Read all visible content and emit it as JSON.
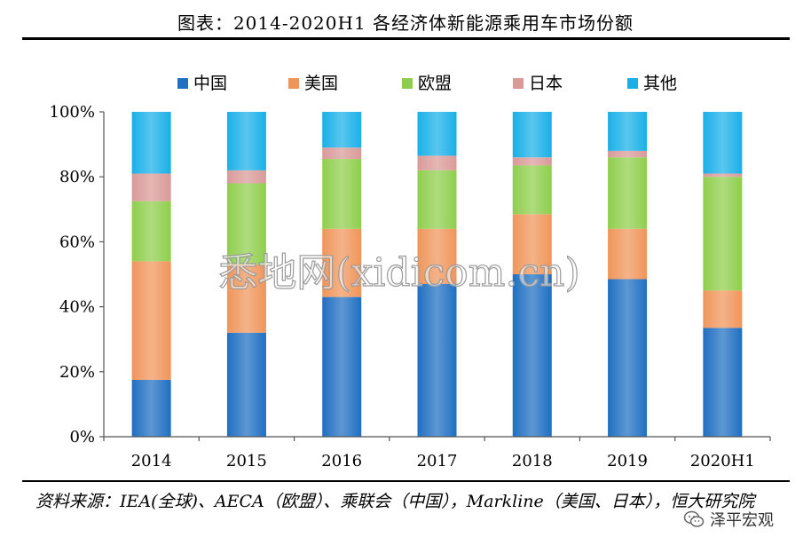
{
  "title": "图表：2014-2020H1 各经济体新能源乘用车市场份额",
  "source_note": "资料来源：IEA(全球)、AECA（欧盟）、乘联会（中国），Markline（美国、日本），恒大研究院",
  "watermark": "悉地网(xidicom.cn)",
  "wechat_name": "泽平宏观",
  "chart_data": {
    "type": "bar",
    "stacked": true,
    "categories": [
      "2014",
      "2015",
      "2016",
      "2017",
      "2018",
      "2019",
      "2020H1"
    ],
    "series": [
      {
        "name": "中国",
        "color": "#1f6fc2",
        "values": [
          17.5,
          32,
          43,
          47,
          50,
          48.5,
          33.5
        ]
      },
      {
        "name": "美国",
        "color": "#f0955a",
        "values": [
          36.5,
          21,
          21,
          17,
          18.5,
          15.5,
          11.5
        ]
      },
      {
        "name": "欧盟",
        "color": "#8fce4c",
        "values": [
          18.5,
          25,
          21.5,
          18,
          15,
          22,
          35
        ]
      },
      {
        "name": "日本",
        "color": "#d99a98",
        "values": [
          8.5,
          4,
          3.5,
          4.5,
          2.5,
          2,
          1
        ]
      },
      {
        "name": "其他",
        "color": "#19b0e8",
        "values": [
          19,
          18,
          11,
          13.5,
          14,
          12,
          19
        ]
      }
    ],
    "ylim": [
      0,
      100
    ],
    "y_ticks": [
      0,
      20,
      40,
      60,
      80,
      100
    ],
    "y_tick_labels": [
      "0%",
      "20%",
      "40%",
      "60%",
      "80%",
      "100%"
    ],
    "legend_position": "top",
    "grid": false
  }
}
